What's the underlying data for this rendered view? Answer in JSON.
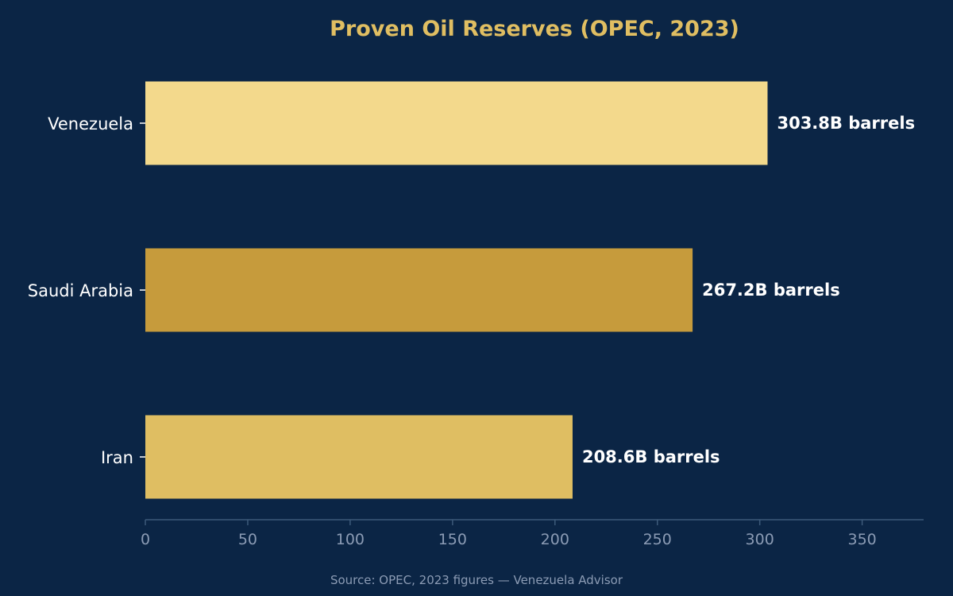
{
  "chart_data": {
    "type": "bar",
    "orientation": "horizontal",
    "title": "Proven Oil Reserves (OPEC, 2023)",
    "xlabel": "",
    "ylabel": "",
    "categories": [
      "Venezuela",
      "Saudi Arabia",
      "Iran"
    ],
    "values": [
      303.8,
      267.2,
      208.6
    ],
    "value_labels": [
      "303.8B barrels",
      "267.2B barrels",
      "208.6B barrels"
    ],
    "colors": [
      "#f3d98c",
      "#c69b3c",
      "#dfbe62"
    ],
    "xlim": [
      0,
      380
    ],
    "xticks": [
      0,
      50,
      100,
      150,
      200,
      250,
      300,
      350
    ],
    "grid": false,
    "legend": "none"
  },
  "footer": {
    "source": "Source: OPEC, 2023 figures — Venezuela Advisor"
  },
  "colors": {
    "background": "#0b2545",
    "title": "#e0be62",
    "axis": "#3d5a7a",
    "tick_text": "#8b9bb4",
    "label_text": "#ffffff"
  }
}
